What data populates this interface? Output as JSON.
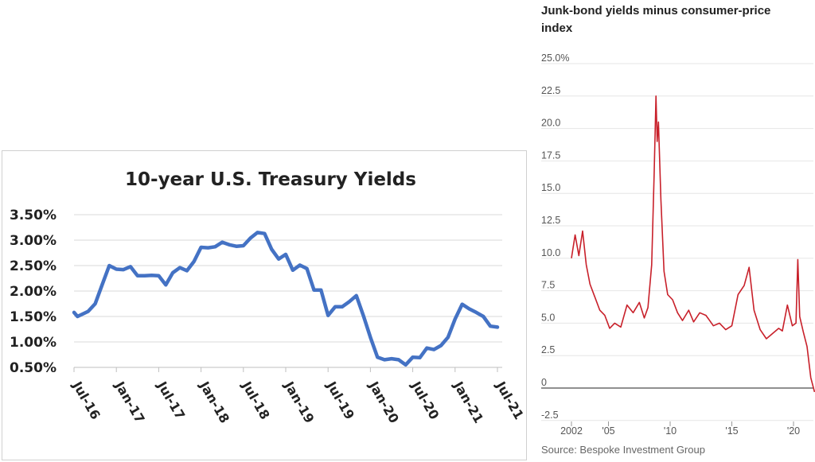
{
  "chart_data": [
    {
      "type": "line",
      "title": "10-year U.S. Treasury Yields",
      "y_ticks": [
        "3.50%",
        "3.00%",
        "2.50%",
        "2.00%",
        "1.50%",
        "1.00%",
        "0.50%"
      ],
      "y_tick_values": [
        3.5,
        3.0,
        2.5,
        2.0,
        1.5,
        1.0,
        0.5
      ],
      "x_ticks": [
        "Jul-16",
        "Jan-17",
        "Jul-17",
        "Jan-18",
        "Jul-18",
        "Jan-19",
        "Jul-19",
        "Jan-20",
        "Jul-20",
        "Jan-21",
        "Jul-21"
      ],
      "ylim": [
        0.5,
        3.5
      ],
      "grid": true,
      "line_color": "#4472C4",
      "x_month_index": [
        0,
        0.5,
        2,
        3,
        4,
        5,
        6,
        7,
        8,
        9,
        10,
        11,
        12,
        13,
        14,
        15,
        16,
        17,
        18,
        19,
        20,
        21,
        22,
        23,
        24,
        25,
        26,
        27,
        28,
        29,
        30,
        31,
        32,
        33,
        34,
        35,
        36,
        37,
        38,
        39,
        40,
        41,
        42,
        43,
        44,
        45,
        46,
        47,
        48,
        49,
        50,
        51,
        52,
        53,
        54,
        55,
        56,
        57,
        58,
        59,
        60
      ],
      "values": [
        1.58,
        1.5,
        1.6,
        1.75,
        2.13,
        2.5,
        2.43,
        2.42,
        2.48,
        2.3,
        2.3,
        2.31,
        2.3,
        2.12,
        2.36,
        2.46,
        2.4,
        2.58,
        2.86,
        2.85,
        2.87,
        2.96,
        2.91,
        2.88,
        2.89,
        3.04,
        3.15,
        3.13,
        2.82,
        2.63,
        2.72,
        2.41,
        2.51,
        2.44,
        2.02,
        2.02,
        1.52,
        1.69,
        1.69,
        1.79,
        1.91,
        1.52,
        1.09,
        0.7,
        0.65,
        0.67,
        0.65,
        0.55,
        0.7,
        0.69,
        0.88,
        0.85,
        0.93,
        1.09,
        1.45,
        1.74,
        1.65,
        1.58,
        1.5,
        1.31,
        1.29
      ]
    },
    {
      "type": "line",
      "title": "Junk-bond yields minus consumer-price index",
      "y_ticks": [
        "25.0%",
        "22.5",
        "20.0",
        "17.5",
        "15.0",
        "12.5",
        "10.0",
        "7.5",
        "5.0",
        "2.5",
        "0",
        "-2.5"
      ],
      "y_tick_values": [
        25,
        22.5,
        20,
        17.5,
        15,
        12.5,
        10,
        7.5,
        5,
        2.5,
        0,
        -2.5
      ],
      "x_ticks": [
        "2002",
        "'05",
        "'10",
        "'15",
        "'20"
      ],
      "x_tick_years": [
        2002,
        2005,
        2010,
        2015,
        2020
      ],
      "ylim": [
        -2.5,
        25
      ],
      "line_color": "#C8202A",
      "source": "Source: Bespoke Investment Group",
      "x_years": [
        2002.0,
        2002.3,
        2002.6,
        2002.9,
        2003.2,
        2003.5,
        2003.9,
        2004.3,
        2004.7,
        2005.1,
        2005.5,
        2006.0,
        2006.5,
        2007.0,
        2007.5,
        2007.9,
        2008.2,
        2008.5,
        2008.7,
        2008.85,
        2008.95,
        2009.05,
        2009.25,
        2009.5,
        2009.8,
        2010.2,
        2010.6,
        2011.0,
        2011.5,
        2011.9,
        2012.4,
        2012.9,
        2013.5,
        2014.0,
        2014.5,
        2015.0,
        2015.5,
        2016.0,
        2016.4,
        2016.8,
        2017.3,
        2017.8,
        2018.3,
        2018.8,
        2019.1,
        2019.5,
        2019.9,
        2020.2,
        2020.35,
        2020.5,
        2020.8,
        2021.1,
        2021.4,
        2021.7
      ],
      "values": [
        10.0,
        11.8,
        10.2,
        12.1,
        9.5,
        8.0,
        7.0,
        6.0,
        5.6,
        4.6,
        5.0,
        4.7,
        6.4,
        5.8,
        6.6,
        5.4,
        6.2,
        9.5,
        16.5,
        22.5,
        19.0,
        20.5,
        14.5,
        9.0,
        7.2,
        6.8,
        5.8,
        5.2,
        6.0,
        5.1,
        5.8,
        5.6,
        4.8,
        5.0,
        4.5,
        4.8,
        7.2,
        7.9,
        9.3,
        6.0,
        4.5,
        3.8,
        4.2,
        4.6,
        4.4,
        6.4,
        4.8,
        5.0,
        9.9,
        5.5,
        4.3,
        3.2,
        0.8,
        -0.3
      ]
    }
  ]
}
